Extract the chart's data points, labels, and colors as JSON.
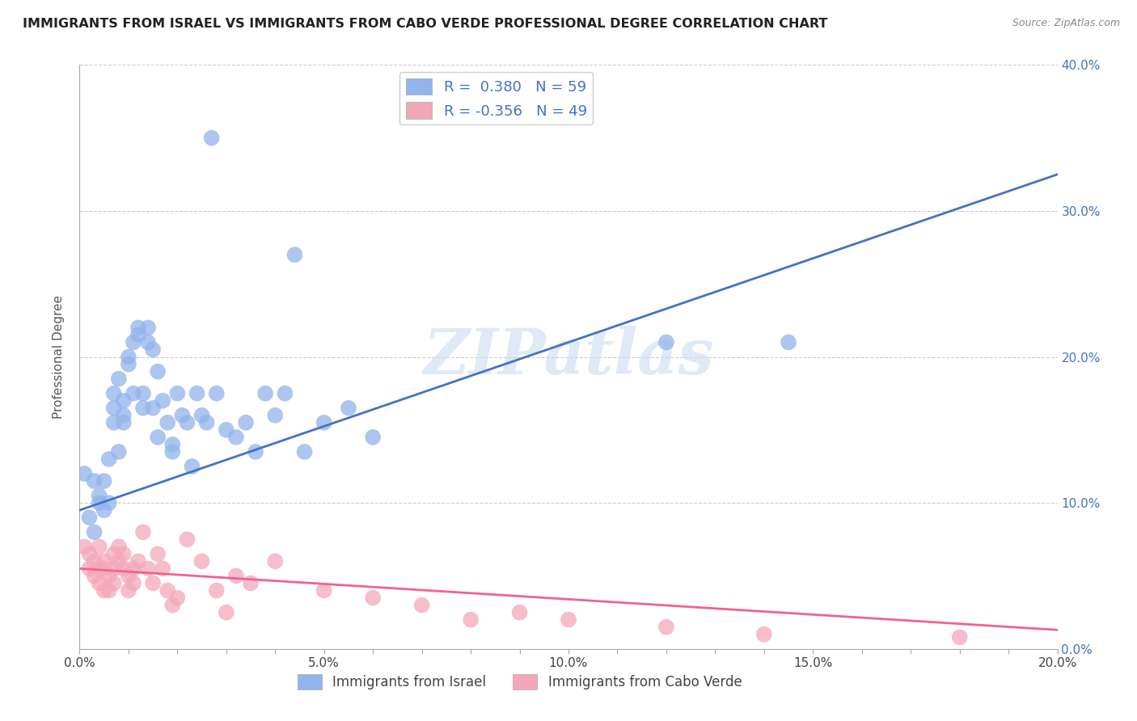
{
  "title": "IMMIGRANTS FROM ISRAEL VS IMMIGRANTS FROM CABO VERDE PROFESSIONAL DEGREE CORRELATION CHART",
  "source": "Source: ZipAtlas.com",
  "ylabel": "Professional Degree",
  "xlim": [
    0.0,
    0.2
  ],
  "ylim": [
    0.0,
    0.4
  ],
  "xtick_labels": [
    "0.0%",
    "",
    "",
    "",
    "",
    "5.0%",
    "",
    "",
    "",
    "",
    "10.0%",
    "",
    "",
    "",
    "",
    "15.0%",
    "",
    "",
    "",
    "",
    "20.0%"
  ],
  "xtick_values": [
    0.0,
    0.01,
    0.02,
    0.03,
    0.04,
    0.05,
    0.06,
    0.07,
    0.08,
    0.09,
    0.1,
    0.11,
    0.12,
    0.13,
    0.14,
    0.15,
    0.16,
    0.17,
    0.18,
    0.19,
    0.2
  ],
  "ytick_labels_right": [
    "0.0%",
    "10.0%",
    "20.0%",
    "30.0%",
    "40.0%"
  ],
  "ytick_values": [
    0.0,
    0.1,
    0.2,
    0.3,
    0.4
  ],
  "israel_color": "#92B4EC",
  "cabo_verde_color": "#F4A7B9",
  "israel_line_color": "#4472C4",
  "cabo_verde_line_color": "#F06292",
  "israel_R": 0.38,
  "israel_N": 59,
  "cabo_verde_R": -0.356,
  "cabo_verde_N": 49,
  "legend_label_israel": "Immigrants from Israel",
  "legend_label_cabo_verde": "Immigrants from Cabo Verde",
  "watermark": "ZIPatlas",
  "israel_scatter_x": [
    0.001,
    0.002,
    0.003,
    0.003,
    0.004,
    0.004,
    0.005,
    0.005,
    0.006,
    0.006,
    0.007,
    0.007,
    0.007,
    0.008,
    0.008,
    0.009,
    0.009,
    0.009,
    0.01,
    0.01,
    0.011,
    0.011,
    0.012,
    0.012,
    0.013,
    0.013,
    0.014,
    0.014,
    0.015,
    0.015,
    0.016,
    0.016,
    0.017,
    0.018,
    0.019,
    0.019,
    0.02,
    0.021,
    0.022,
    0.023,
    0.024,
    0.025,
    0.026,
    0.027,
    0.028,
    0.03,
    0.032,
    0.034,
    0.036,
    0.038,
    0.04,
    0.042,
    0.044,
    0.046,
    0.05,
    0.055,
    0.06,
    0.12,
    0.145
  ],
  "israel_scatter_y": [
    0.12,
    0.09,
    0.115,
    0.08,
    0.1,
    0.105,
    0.095,
    0.115,
    0.1,
    0.13,
    0.155,
    0.165,
    0.175,
    0.185,
    0.135,
    0.17,
    0.16,
    0.155,
    0.2,
    0.195,
    0.175,
    0.21,
    0.22,
    0.215,
    0.165,
    0.175,
    0.22,
    0.21,
    0.165,
    0.205,
    0.19,
    0.145,
    0.17,
    0.155,
    0.135,
    0.14,
    0.175,
    0.16,
    0.155,
    0.125,
    0.175,
    0.16,
    0.155,
    0.35,
    0.175,
    0.15,
    0.145,
    0.155,
    0.135,
    0.175,
    0.16,
    0.175,
    0.27,
    0.135,
    0.155,
    0.165,
    0.145,
    0.21,
    0.21
  ],
  "cabo_scatter_x": [
    0.001,
    0.002,
    0.002,
    0.003,
    0.003,
    0.004,
    0.004,
    0.004,
    0.005,
    0.005,
    0.005,
    0.006,
    0.006,
    0.007,
    0.007,
    0.007,
    0.008,
    0.008,
    0.009,
    0.009,
    0.01,
    0.01,
    0.011,
    0.011,
    0.012,
    0.013,
    0.014,
    0.015,
    0.016,
    0.017,
    0.018,
    0.019,
    0.02,
    0.022,
    0.025,
    0.028,
    0.03,
    0.032,
    0.035,
    0.04,
    0.05,
    0.06,
    0.07,
    0.08,
    0.09,
    0.1,
    0.12,
    0.14,
    0.18
  ],
  "cabo_scatter_y": [
    0.07,
    0.065,
    0.055,
    0.06,
    0.05,
    0.07,
    0.055,
    0.045,
    0.06,
    0.04,
    0.055,
    0.05,
    0.04,
    0.065,
    0.055,
    0.045,
    0.07,
    0.06,
    0.065,
    0.055,
    0.05,
    0.04,
    0.055,
    0.045,
    0.06,
    0.08,
    0.055,
    0.045,
    0.065,
    0.055,
    0.04,
    0.03,
    0.035,
    0.075,
    0.06,
    0.04,
    0.025,
    0.05,
    0.045,
    0.06,
    0.04,
    0.035,
    0.03,
    0.02,
    0.025,
    0.02,
    0.015,
    0.01,
    0.008
  ],
  "israel_line_x": [
    0.0,
    0.2
  ],
  "israel_line_y": [
    0.095,
    0.325
  ],
  "cabo_line_x": [
    0.0,
    0.2
  ],
  "cabo_line_y": [
    0.055,
    0.013
  ]
}
